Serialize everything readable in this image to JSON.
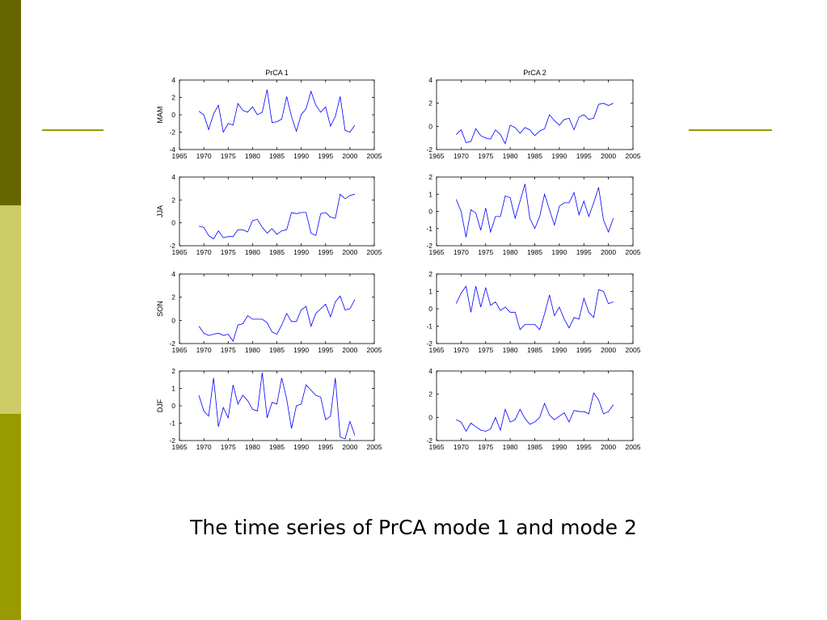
{
  "slide": {
    "caption": "The time series of PrCA mode 1 and mode 2",
    "colors": {
      "bar_top": "#666600",
      "bar_mid": "#cccc66",
      "bar_bottom": "#999900",
      "accent_lines": "#999900",
      "series_line": "#0000ff"
    }
  },
  "chart_data": [
    {
      "type": "line",
      "title": "PrCA 1",
      "ylabel": "MAM",
      "xlim": [
        1965,
        2005
      ],
      "ylim": [
        -4,
        4
      ],
      "xticks": [
        1965,
        1970,
        1975,
        1980,
        1985,
        1990,
        1995,
        2000,
        2005
      ],
      "yticks": [
        -4,
        -2,
        0,
        2,
        4
      ],
      "series": [
        {
          "x": [
            1969,
            1970,
            1971,
            1972,
            1973,
            1974,
            1975,
            1976,
            1977,
            1978,
            1979,
            1980,
            1981,
            1982,
            1983,
            1984,
            1985,
            1986,
            1987,
            1988,
            1989,
            1990,
            1991,
            1992,
            1993,
            1994,
            1995,
            1996,
            1997,
            1998,
            1999,
            2000,
            2001
          ],
          "values": [
            0.4,
            0,
            -1.7,
            0.1,
            1.1,
            -2,
            -1,
            -1.2,
            1.3,
            0.5,
            0.3,
            0.9,
            0,
            0.3,
            2.9,
            -0.9,
            -0.8,
            -0.5,
            2.1,
            -0.2,
            -1.9,
            0,
            0.7,
            2.7,
            1.1,
            0.3,
            0.9,
            -1.3,
            -0.2,
            2.1,
            -1.8,
            -2,
            -1.2
          ]
        }
      ]
    },
    {
      "type": "line",
      "title": "PrCA 2",
      "ylabel": "",
      "xlim": [
        1965,
        2005
      ],
      "ylim": [
        -2,
        4
      ],
      "xticks": [
        1965,
        1970,
        1975,
        1980,
        1985,
        1990,
        1995,
        2000,
        2005
      ],
      "yticks": [
        -2,
        0,
        2,
        4
      ],
      "series": [
        {
          "x": [
            1969,
            1970,
            1971,
            1972,
            1973,
            1974,
            1975,
            1976,
            1977,
            1978,
            1979,
            1980,
            1981,
            1982,
            1983,
            1984,
            1985,
            1986,
            1987,
            1988,
            1989,
            1990,
            1991,
            1992,
            1993,
            1994,
            1995,
            1996,
            1997,
            1998,
            1999,
            2000,
            2001
          ],
          "values": [
            -0.7,
            -0.3,
            -1.4,
            -1.3,
            -0.2,
            -0.8,
            -1,
            -1.1,
            -0.3,
            -0.7,
            -1.5,
            0.1,
            -0.1,
            -0.6,
            -0.1,
            -0.3,
            -0.8,
            -0.4,
            -0.2,
            1,
            0.5,
            0.1,
            0.6,
            0.7,
            -0.3,
            0.8,
            1,
            0.6,
            0.7,
            1.9,
            2,
            1.8,
            2
          ]
        }
      ]
    },
    {
      "type": "line",
      "title": "",
      "ylabel": "JJA",
      "xlim": [
        1965,
        2005
      ],
      "ylim": [
        -2,
        4
      ],
      "xticks": [
        1965,
        1970,
        1975,
        1980,
        1985,
        1990,
        1995,
        2000,
        2005
      ],
      "yticks": [
        -2,
        0,
        2,
        4
      ],
      "series": [
        {
          "x": [
            1969,
            1970,
            1971,
            1972,
            1973,
            1974,
            1975,
            1976,
            1977,
            1978,
            1979,
            1980,
            1981,
            1982,
            1983,
            1984,
            1985,
            1986,
            1987,
            1988,
            1989,
            1990,
            1991,
            1992,
            1993,
            1994,
            1995,
            1996,
            1997,
            1998,
            1999,
            2000,
            2001
          ],
          "values": [
            -0.3,
            -0.4,
            -1.1,
            -1.4,
            -0.7,
            -1.3,
            -1.2,
            -1.2,
            -0.6,
            -0.6,
            -0.8,
            0.2,
            0.3,
            -0.4,
            -0.9,
            -0.5,
            -1,
            -0.7,
            -0.6,
            0.9,
            0.8,
            0.9,
            0.9,
            -0.9,
            -1.1,
            0.8,
            0.9,
            0.5,
            0.4,
            2.5,
            2.1,
            2.4,
            2.5
          ]
        }
      ]
    },
    {
      "type": "line",
      "title": "",
      "ylabel": "",
      "xlim": [
        1965,
        2005
      ],
      "ylim": [
        -2,
        2
      ],
      "xticks": [
        1965,
        1970,
        1975,
        1980,
        1985,
        1990,
        1995,
        2000,
        2005
      ],
      "yticks": [
        -2,
        -1,
        0,
        1,
        2
      ],
      "series": [
        {
          "x": [
            1969,
            1970,
            1971,
            1972,
            1973,
            1974,
            1975,
            1976,
            1977,
            1978,
            1979,
            1980,
            1981,
            1982,
            1983,
            1984,
            1985,
            1986,
            1987,
            1988,
            1989,
            1990,
            1991,
            1992,
            1993,
            1994,
            1995,
            1996,
            1997,
            1998,
            1999,
            2000,
            2001
          ],
          "values": [
            0.7,
            0,
            -1.5,
            0.1,
            -0.1,
            -1.1,
            0.2,
            -1.2,
            -0.3,
            -0.3,
            0.9,
            0.8,
            -0.4,
            0.6,
            1.6,
            -0.4,
            -1,
            -0.3,
            1,
            0.1,
            -0.8,
            0.3,
            0.5,
            0.5,
            1.1,
            -0.2,
            0.6,
            -0.3,
            0.5,
            1.4,
            -0.5,
            -1.2,
            -0.4
          ]
        }
      ]
    },
    {
      "type": "line",
      "title": "",
      "ylabel": "SON",
      "xlim": [
        1965,
        2005
      ],
      "ylim": [
        -2,
        4
      ],
      "xticks": [
        1965,
        1970,
        1975,
        1980,
        1985,
        1990,
        1995,
        2000,
        2005
      ],
      "yticks": [
        -2,
        0,
        2,
        4
      ],
      "series": [
        {
          "x": [
            1969,
            1970,
            1971,
            1972,
            1973,
            1974,
            1975,
            1976,
            1977,
            1978,
            1979,
            1980,
            1981,
            1982,
            1983,
            1984,
            1985,
            1986,
            1987,
            1988,
            1989,
            1990,
            1991,
            1992,
            1993,
            1994,
            1995,
            1996,
            1997,
            1998,
            1999,
            2000,
            2001
          ],
          "values": [
            -0.5,
            -1.1,
            -1.3,
            -1.2,
            -1.1,
            -1.3,
            -1.2,
            -1.8,
            -0.4,
            -0.3,
            0.4,
            0.1,
            0.1,
            0.1,
            -0.2,
            -1,
            -1.2,
            -0.4,
            0.6,
            -0.1,
            -0.1,
            0.9,
            1.2,
            -0.5,
            0.6,
            1,
            1.4,
            0.3,
            1.6,
            2.1,
            0.9,
            1,
            1.8
          ]
        }
      ]
    },
    {
      "type": "line",
      "title": "",
      "ylabel": "",
      "xlim": [
        1965,
        2005
      ],
      "ylim": [
        -2,
        2
      ],
      "xticks": [
        1965,
        1970,
        1975,
        1980,
        1985,
        1990,
        1995,
        2000,
        2005
      ],
      "yticks": [
        -2,
        -1,
        0,
        1,
        2
      ],
      "series": [
        {
          "x": [
            1969,
            1970,
            1971,
            1972,
            1973,
            1974,
            1975,
            1976,
            1977,
            1978,
            1979,
            1980,
            1981,
            1982,
            1983,
            1984,
            1985,
            1986,
            1987,
            1988,
            1989,
            1990,
            1991,
            1992,
            1993,
            1994,
            1995,
            1996,
            1997,
            1998,
            1999,
            2000,
            2001
          ],
          "values": [
            0.3,
            0.9,
            1.3,
            -0.2,
            1.3,
            0.1,
            1.2,
            0.2,
            0.4,
            -0.1,
            0.1,
            -0.2,
            -0.2,
            -1.2,
            -0.9,
            -0.9,
            -0.9,
            -1.2,
            -0.3,
            0.8,
            -0.4,
            0.1,
            -0.6,
            -1.1,
            -0.5,
            -0.6,
            0.6,
            -0.2,
            -0.5,
            1.1,
            1,
            0.3,
            0.4
          ]
        }
      ]
    },
    {
      "type": "line",
      "title": "",
      "ylabel": "DJF",
      "xlim": [
        1965,
        2005
      ],
      "ylim": [
        -2,
        2
      ],
      "xticks": [
        1965,
        1970,
        1975,
        1980,
        1985,
        1990,
        1995,
        2000,
        2005
      ],
      "yticks": [
        -2,
        -1,
        0,
        1,
        2
      ],
      "series": [
        {
          "x": [
            1969,
            1970,
            1971,
            1972,
            1973,
            1974,
            1975,
            1976,
            1977,
            1978,
            1979,
            1980,
            1981,
            1982,
            1983,
            1984,
            1985,
            1986,
            1987,
            1988,
            1989,
            1990,
            1991,
            1992,
            1993,
            1994,
            1995,
            1996,
            1997,
            1998,
            1999,
            2000,
            2001
          ],
          "values": [
            0.6,
            -0.3,
            -0.6,
            1.6,
            -1.2,
            -0.1,
            -0.7,
            1.2,
            0.1,
            0.6,
            0.3,
            -0.2,
            -0.3,
            1.9,
            -0.7,
            0.2,
            0.1,
            1.6,
            0.4,
            -1.3,
            0,
            0.1,
            1.2,
            0.9,
            0.6,
            0.5,
            -0.8,
            -0.6,
            1.6,
            -1.8,
            -1.9,
            -0.9,
            -1.7
          ]
        }
      ]
    },
    {
      "type": "line",
      "title": "",
      "ylabel": "",
      "xlim": [
        1965,
        2005
      ],
      "ylim": [
        -2,
        4
      ],
      "xticks": [
        1965,
        1970,
        1975,
        1980,
        1985,
        1990,
        1995,
        2000,
        2005
      ],
      "yticks": [
        -2,
        0,
        2,
        4
      ],
      "series": [
        {
          "x": [
            1969,
            1970,
            1971,
            1972,
            1973,
            1974,
            1975,
            1976,
            1977,
            1978,
            1979,
            1980,
            1981,
            1982,
            1983,
            1984,
            1985,
            1986,
            1987,
            1988,
            1989,
            1990,
            1991,
            1992,
            1993,
            1994,
            1995,
            1996,
            1997,
            1998,
            1999,
            2000,
            2001
          ],
          "values": [
            -0.2,
            -0.4,
            -1.2,
            -0.5,
            -0.8,
            -1.1,
            -1.2,
            -1,
            0,
            -1.1,
            0.7,
            -0.4,
            -0.2,
            0.7,
            -0.1,
            -0.6,
            -0.4,
            0,
            1.2,
            0.2,
            -0.2,
            0.1,
            0.4,
            -0.4,
            0.6,
            0.5,
            0.5,
            0.3,
            2.1,
            1.5,
            0.3,
            0.5,
            1.1
          ]
        }
      ]
    }
  ]
}
